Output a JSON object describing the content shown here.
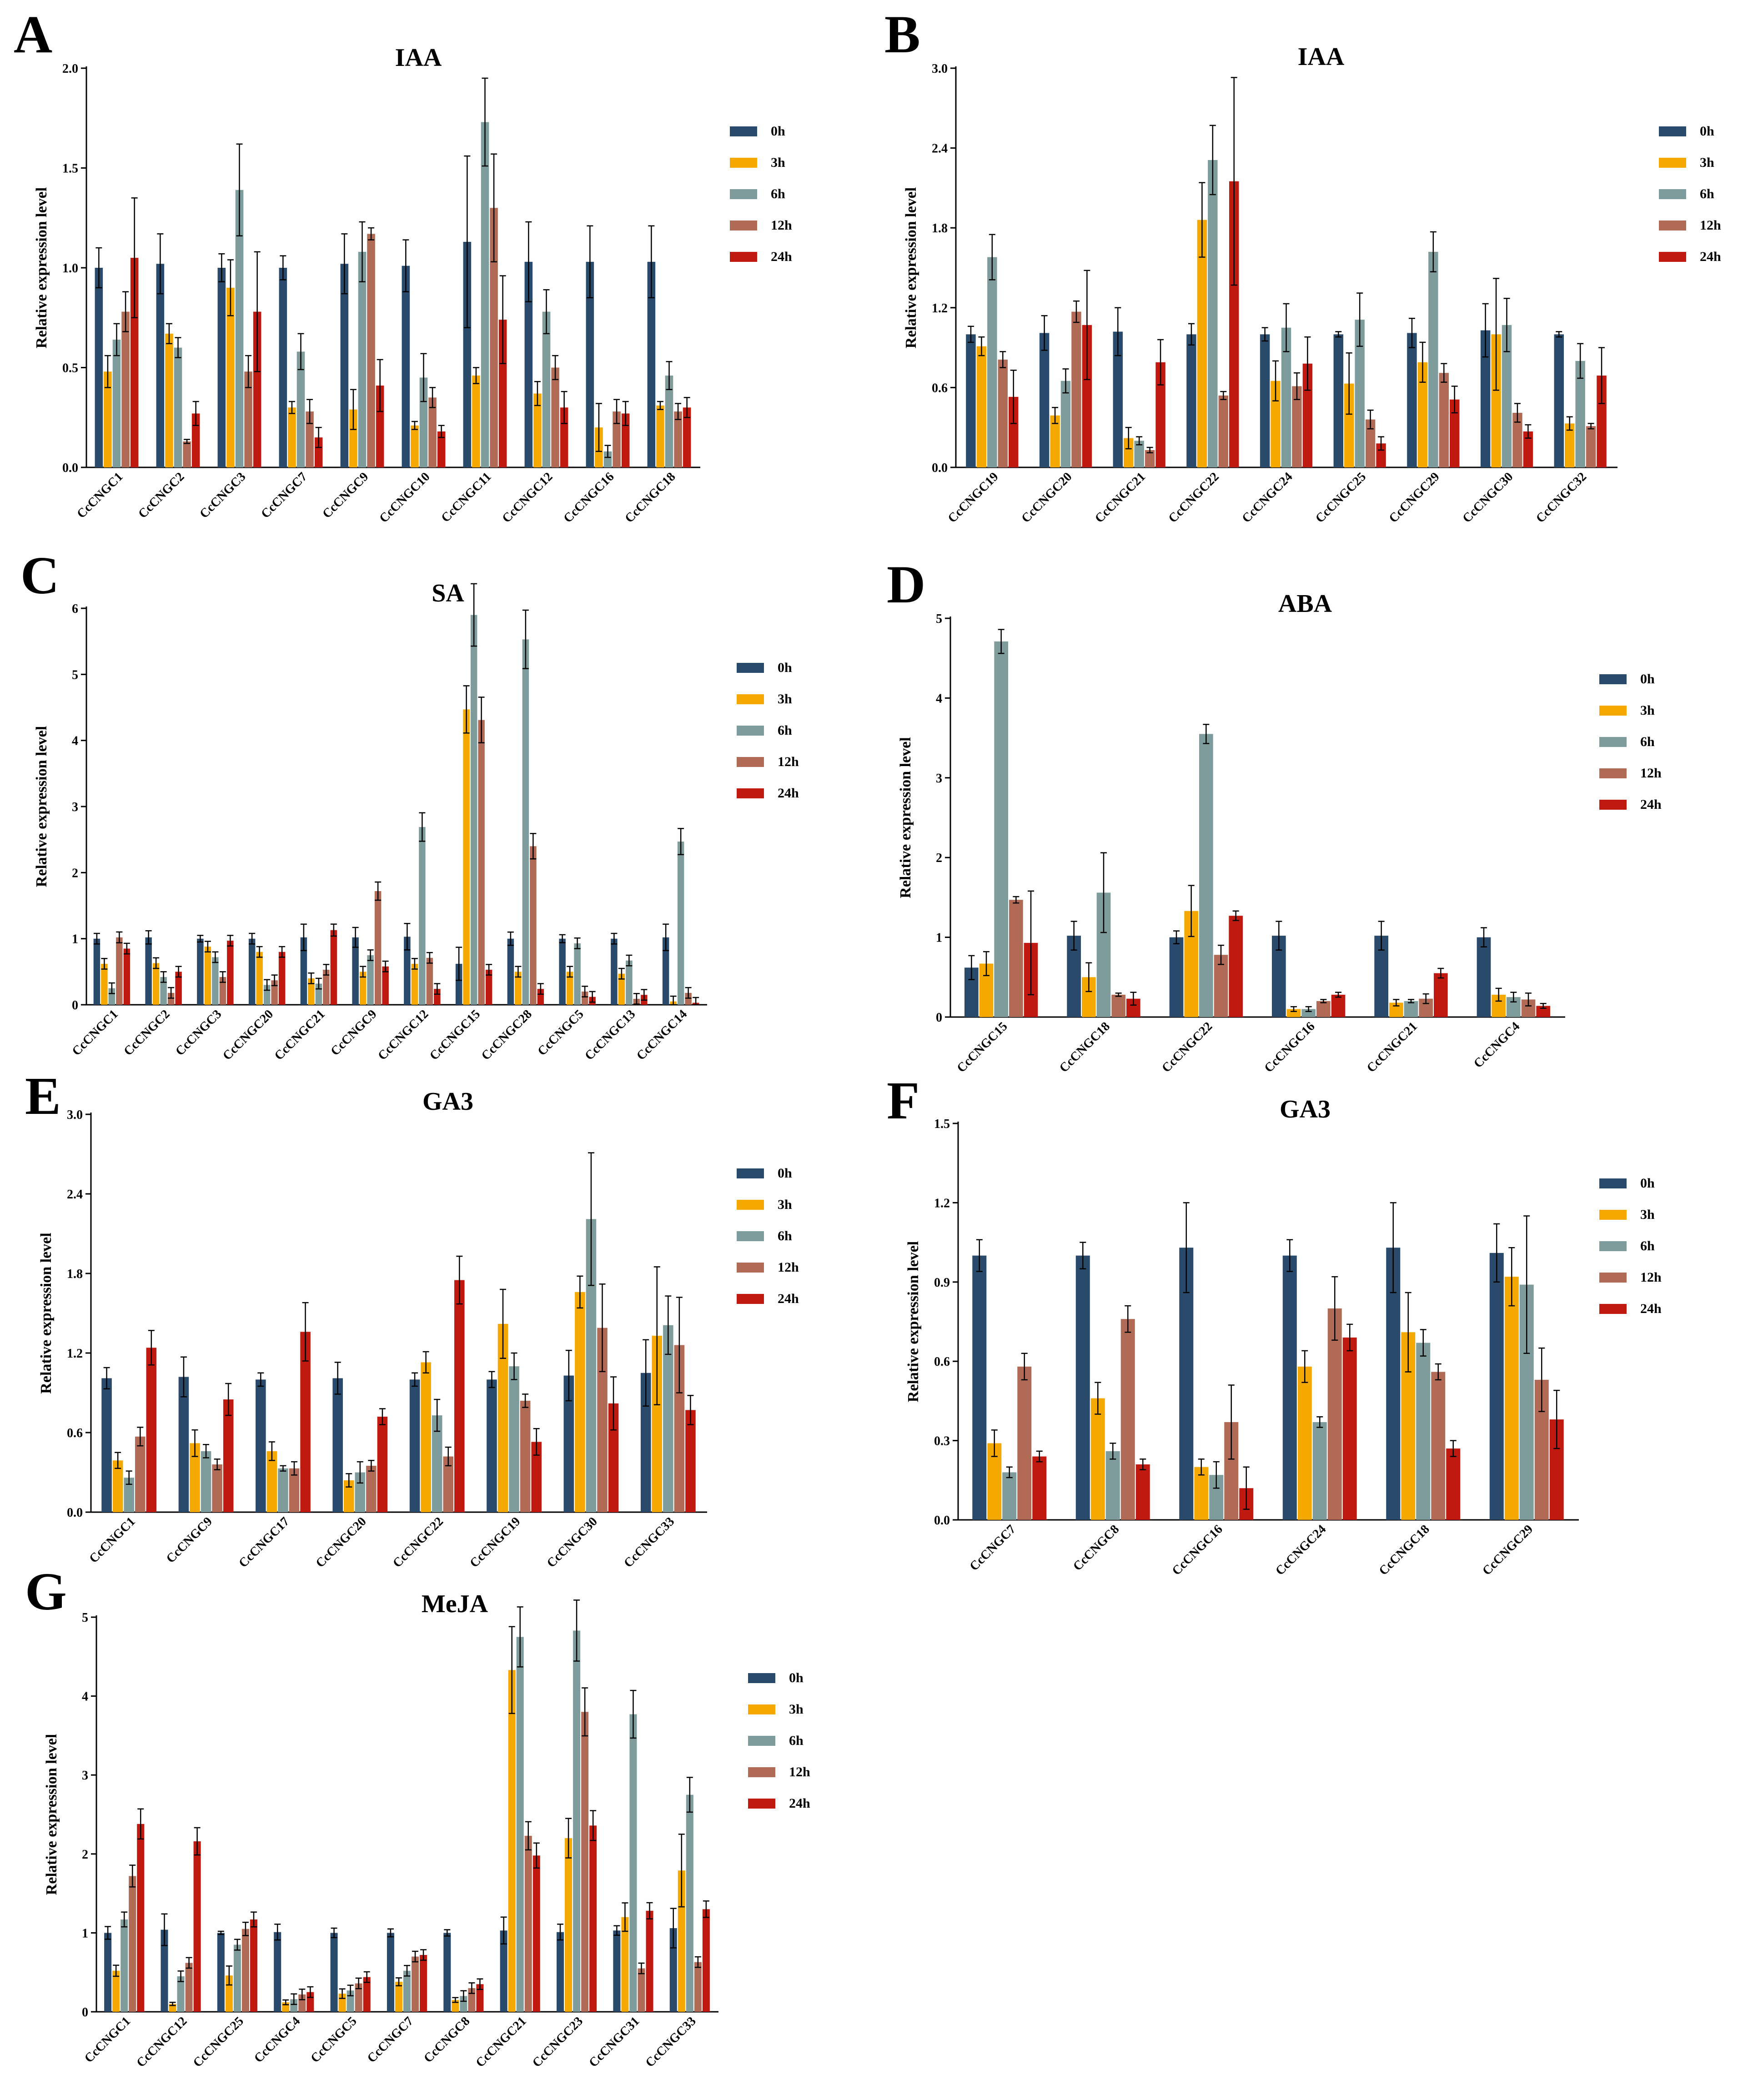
{
  "colors": {
    "h0": "#2a4a6b",
    "h3": "#f5a800",
    "h6": "#7f9c9c",
    "h12": "#b06a55",
    "h24": "#c01a10"
  },
  "legend_labels": [
    "0h",
    "3h",
    "6h",
    "12h",
    "24h"
  ],
  "chart_data": [
    {
      "panel": "A",
      "type": "bar",
      "title": "IAA",
      "ylabel": "Relative expression level",
      "ylim": [
        0,
        2.0
      ],
      "yticks": [
        "0.0",
        "0.5",
        "1.0",
        "1.5",
        "2.0"
      ],
      "categories": [
        "CcCNGC1",
        "CcCNGC2",
        "CcCNGC3",
        "CcCNGC7",
        "CcCNGC9",
        "CcCNGC10",
        "CcCNGC11",
        "CcCNGC12",
        "CcCNGC16",
        "CcCNGC18"
      ],
      "series": [
        {
          "name": "0h",
          "values": [
            1.0,
            1.02,
            1.0,
            1.0,
            1.02,
            1.01,
            1.13,
            1.03,
            1.03,
            1.03
          ],
          "errors": [
            0.1,
            0.15,
            0.07,
            0.06,
            0.15,
            0.13,
            0.43,
            0.2,
            0.18,
            0.18
          ]
        },
        {
          "name": "3h",
          "values": [
            0.48,
            0.67,
            0.9,
            0.3,
            0.29,
            0.21,
            0.46,
            0.37,
            0.2,
            0.31
          ],
          "errors": [
            0.08,
            0.05,
            0.14,
            0.03,
            0.1,
            0.02,
            0.04,
            0.06,
            0.12,
            0.02
          ]
        },
        {
          "name": "6h",
          "values": [
            0.64,
            0.6,
            1.39,
            0.58,
            1.08,
            0.45,
            1.73,
            0.78,
            0.08,
            0.46
          ],
          "errors": [
            0.08,
            0.05,
            0.23,
            0.09,
            0.15,
            0.12,
            0.22,
            0.11,
            0.03,
            0.07
          ]
        },
        {
          "name": "12h",
          "values": [
            0.78,
            0.13,
            0.48,
            0.28,
            1.17,
            0.35,
            1.3,
            0.5,
            0.28,
            0.28
          ],
          "errors": [
            0.1,
            0.01,
            0.08,
            0.06,
            0.03,
            0.05,
            0.27,
            0.06,
            0.06,
            0.04
          ]
        },
        {
          "name": "24h",
          "values": [
            1.05,
            0.27,
            0.78,
            0.15,
            0.41,
            0.18,
            0.74,
            0.3,
            0.27,
            0.3
          ],
          "errors": [
            0.3,
            0.06,
            0.3,
            0.05,
            0.13,
            0.03,
            0.22,
            0.08,
            0.06,
            0.05
          ]
        }
      ]
    },
    {
      "panel": "B",
      "type": "bar",
      "title": "IAA",
      "ylabel": "Relative expression level",
      "ylim": [
        0,
        3.0
      ],
      "yticks": [
        "0.0",
        "0.6",
        "1.2",
        "1.8",
        "2.4",
        "3.0"
      ],
      "categories": [
        "CcCNGC19",
        "CcCNGC20",
        "CcCNGC21",
        "CcCNGC22",
        "CcCNGC24",
        "CcCNGC25",
        "CcCNGC29",
        "CcCNGC30",
        "CcCNGC32"
      ],
      "series": [
        {
          "name": "0h",
          "values": [
            1.0,
            1.01,
            1.02,
            1.0,
            1.0,
            1.0,
            1.01,
            1.03,
            1.0
          ],
          "errors": [
            0.06,
            0.13,
            0.18,
            0.08,
            0.05,
            0.02,
            0.11,
            0.2,
            0.02
          ]
        },
        {
          "name": "3h",
          "values": [
            0.91,
            0.39,
            0.22,
            1.86,
            0.65,
            0.63,
            0.79,
            1.0,
            0.33
          ],
          "errors": [
            0.07,
            0.06,
            0.08,
            0.28,
            0.15,
            0.23,
            0.15,
            0.42,
            0.05
          ]
        },
        {
          "name": "6h",
          "values": [
            1.58,
            0.65,
            0.2,
            2.31,
            1.05,
            1.11,
            1.62,
            1.07,
            0.8
          ],
          "errors": [
            0.17,
            0.09,
            0.03,
            0.26,
            0.18,
            0.2,
            0.15,
            0.2,
            0.13
          ]
        },
        {
          "name": "12h",
          "values": [
            0.81,
            1.17,
            0.13,
            0.54,
            0.61,
            0.36,
            0.71,
            0.41,
            0.31
          ],
          "errors": [
            0.06,
            0.08,
            0.02,
            0.03,
            0.1,
            0.07,
            0.07,
            0.07,
            0.02
          ]
        },
        {
          "name": "24h",
          "values": [
            0.53,
            1.07,
            0.79,
            2.15,
            0.78,
            0.18,
            0.51,
            0.27,
            0.69
          ],
          "errors": [
            0.2,
            0.41,
            0.17,
            0.78,
            0.2,
            0.05,
            0.1,
            0.05,
            0.21
          ]
        }
      ]
    },
    {
      "panel": "C",
      "type": "bar",
      "title": "SA",
      "ylabel": "Relative expression level",
      "ylim": [
        0,
        6
      ],
      "yticks": [
        "0",
        "1",
        "2",
        "3",
        "4",
        "5",
        "6"
      ],
      "categories": [
        "CcCNGC1",
        "CcCNGC2",
        "CcCNGC3",
        "CcCNGC20",
        "CcCNGC21",
        "CcCNGC9",
        "CcCNGC12",
        "CcCNGC15",
        "CcCNGC28",
        "CcCNGC5",
        "CcCNGC13",
        "CcCNGC14"
      ],
      "series": [
        {
          "name": "0h",
          "values": [
            1.0,
            1.02,
            1.0,
            1.0,
            1.02,
            1.02,
            1.03,
            0.62,
            1.0,
            1.0,
            1.0,
            1.02
          ],
          "errors": [
            0.08,
            0.1,
            0.05,
            0.08,
            0.2,
            0.15,
            0.2,
            0.25,
            0.1,
            0.06,
            0.08,
            0.2
          ]
        },
        {
          "name": "3h",
          "values": [
            0.62,
            0.63,
            0.88,
            0.8,
            0.4,
            0.5,
            0.62,
            4.47,
            0.5,
            0.5,
            0.47,
            0.05
          ]
        },
        {
          "name": "6h",
          "values": [
            0.25,
            0.42,
            0.72,
            0.3,
            0.32,
            0.75,
            2.69,
            5.9,
            5.53,
            0.93,
            0.67,
            2.47
          ]
        },
        {
          "name": "12h",
          "values": [
            1.02,
            0.18,
            0.42,
            0.37,
            0.53,
            1.72,
            0.71,
            4.31,
            2.4,
            0.2,
            0.09,
            0.18
          ]
        },
        {
          "name": "24h",
          "values": [
            0.85,
            0.5,
            0.97,
            0.8,
            1.13,
            0.58,
            0.24,
            0.53,
            0.24,
            0.12,
            0.15,
            0.03
          ]
        }
      ]
    },
    {
      "panel": "D",
      "type": "bar",
      "title": "ABA",
      "ylabel": "Relative expression level",
      "ylim": [
        0,
        5
      ],
      "yticks": [
        "0",
        "1",
        "2",
        "3",
        "4",
        "5"
      ],
      "categories": [
        "CcCNGC15",
        "CcCNGC18",
        "CcCNGC22",
        "CcCNGC16",
        "CcCNGC21",
        "CcCNGC4"
      ],
      "series": [
        {
          "name": "0h",
          "values": [
            0.62,
            1.02,
            1.0,
            1.02,
            1.02,
            1.0
          ],
          "errors": [
            0.15,
            0.18,
            0.08,
            0.18,
            0.18,
            0.12
          ]
        },
        {
          "name": "3h",
          "values": [
            0.67,
            0.5,
            1.33,
            0.1,
            0.18,
            0.28
          ],
          "errors": [
            0.15,
            0.18,
            0.32,
            0.03,
            0.04,
            0.08
          ]
        },
        {
          "name": "6h",
          "values": [
            4.71,
            1.56,
            3.55,
            0.1,
            0.2,
            0.25
          ],
          "errors": [
            0.15,
            0.5,
            0.12,
            0.03,
            0.02,
            0.06
          ]
        },
        {
          "name": "12h",
          "values": [
            1.47,
            0.28,
            0.78,
            0.2,
            0.23,
            0.22
          ],
          "errors": [
            0.04,
            0.02,
            0.12,
            0.02,
            0.06,
            0.08
          ]
        },
        {
          "name": "24h",
          "values": [
            0.93,
            0.23,
            1.27,
            0.28,
            0.55,
            0.14
          ],
          "errors": [
            0.65,
            0.08,
            0.06,
            0.03,
            0.06,
            0.03
          ]
        }
      ]
    },
    {
      "panel": "E",
      "type": "bar",
      "title": "GA3",
      "ylabel": "Relative expression level",
      "ylim": [
        0,
        3.0
      ],
      "yticks": [
        "0.0",
        "0.6",
        "1.2",
        "1.8",
        "2.4",
        "3.0"
      ],
      "categories": [
        "CcCNGC1",
        "CcCNGC9",
        "CcCNGC17",
        "CcCNGC20",
        "CcCNGC22",
        "CcCNGC19",
        "CcCNGC30",
        "CcCNGC33"
      ],
      "series": [
        {
          "name": "0h",
          "values": [
            1.01,
            1.02,
            1.0,
            1.01,
            1.0,
            1.0,
            1.03,
            1.05
          ],
          "errors": [
            0.08,
            0.15,
            0.05,
            0.12,
            0.05,
            0.06,
            0.19,
            0.25
          ]
        },
        {
          "name": "3h",
          "values": [
            0.39,
            0.52,
            0.46,
            0.24,
            1.13,
            1.42,
            1.66,
            1.33
          ],
          "errors": [
            0.06,
            0.1,
            0.07,
            0.05,
            0.08,
            0.26,
            0.12,
            0.52
          ]
        },
        {
          "name": "6h",
          "values": [
            0.26,
            0.46,
            0.33,
            0.3,
            0.73,
            1.1,
            2.21,
            1.41
          ],
          "errors": [
            0.05,
            0.05,
            0.02,
            0.08,
            0.12,
            0.1,
            0.5,
            0.22
          ]
        },
        {
          "name": "12h",
          "values": [
            0.57,
            0.36,
            0.33,
            0.35,
            0.42,
            0.84,
            1.39,
            1.26
          ],
          "errors": [
            0.07,
            0.04,
            0.05,
            0.04,
            0.07,
            0.05,
            0.33,
            0.36
          ]
        },
        {
          "name": "24h",
          "values": [
            1.24,
            0.85,
            1.36,
            0.72,
            1.75,
            0.53,
            0.82,
            0.77
          ],
          "errors": [
            0.13,
            0.12,
            0.22,
            0.06,
            0.18,
            0.1,
            0.2,
            0.11
          ]
        }
      ]
    },
    {
      "panel": "F",
      "type": "bar",
      "title": "GA3",
      "ylabel": "Relative expression level",
      "ylim": [
        0,
        1.5
      ],
      "yticks": [
        "0.0",
        "0.3",
        "0.6",
        "0.9",
        "1.2",
        "1.5"
      ],
      "categories": [
        "CcCNGC7",
        "CcCNGC8",
        "CcCNGC16",
        "CcCNGC24",
        "CcCNGC18",
        "CcCNGC29"
      ],
      "series": [
        {
          "name": "0h",
          "values": [
            1.0,
            1.0,
            1.03,
            1.0,
            1.03,
            1.01
          ],
          "errors": [
            0.06,
            0.05,
            0.17,
            0.06,
            0.17,
            0.11
          ]
        },
        {
          "name": "3h",
          "values": [
            0.29,
            0.46,
            0.2,
            0.58,
            0.71,
            0.92
          ],
          "errors": [
            0.05,
            0.06,
            0.03,
            0.06,
            0.15,
            0.11
          ]
        },
        {
          "name": "6h",
          "values": [
            0.18,
            0.26,
            0.17,
            0.37,
            0.67,
            0.89
          ],
          "errors": [
            0.02,
            0.03,
            0.05,
            0.02,
            0.05,
            0.26
          ]
        },
        {
          "name": "12h",
          "values": [
            0.58,
            0.76,
            0.37,
            0.8,
            0.56,
            0.53
          ],
          "errors": [
            0.05,
            0.05,
            0.14,
            0.12,
            0.03,
            0.12
          ]
        },
        {
          "name": "24h",
          "values": [
            0.24,
            0.21,
            0.12,
            0.69,
            0.27,
            0.38
          ],
          "errors": [
            0.02,
            0.02,
            0.08,
            0.05,
            0.03,
            0.11
          ]
        }
      ]
    },
    {
      "panel": "G",
      "type": "bar",
      "title": "MeJA",
      "ylabel": "Relative expression level",
      "ylim": [
        0,
        5
      ],
      "yticks": [
        "0",
        "1",
        "2",
        "3",
        "4",
        "5"
      ],
      "categories": [
        "CcCNGC1",
        "CcCNGC12",
        "CcCNGC25",
        "CcCNGC4",
        "CcCNGC5",
        "CcCNGC7",
        "CcCNGC8",
        "CcCNGC21",
        "CcCNGC23",
        "CcCNGC31",
        "CcCNGC33"
      ],
      "series": [
        {
          "name": "0h",
          "values": [
            1.0,
            1.04,
            1.0,
            1.01,
            1.0,
            1.0,
            1.0,
            1.03,
            1.01,
            1.03,
            1.06
          ],
          "errors": [
            0.08,
            0.2,
            0.02,
            0.1,
            0.06,
            0.05,
            0.04,
            0.17,
            0.1,
            0.06,
            0.25
          ]
        },
        {
          "name": "3h",
          "values": [
            0.52,
            0.1,
            0.46,
            0.12,
            0.23,
            0.38,
            0.15,
            4.33,
            2.2,
            1.2,
            1.79
          ],
          "errors": [
            0.07,
            0.02,
            0.12,
            0.03,
            0.06,
            0.05,
            0.03,
            0.55,
            0.25,
            0.18,
            0.46
          ]
        },
        {
          "name": "6h",
          "values": [
            1.17,
            0.45,
            0.85,
            0.16,
            0.27,
            0.52,
            0.2,
            4.75,
            4.83,
            3.77,
            2.75
          ]
        },
        {
          "name": "12h",
          "values": [
            1.72,
            0.62,
            1.05,
            0.22,
            0.36,
            0.7,
            0.3,
            2.23,
            3.8,
            0.55,
            0.63
          ]
        },
        {
          "name": "24h",
          "values": [
            2.38,
            2.16,
            1.17,
            0.25,
            0.44,
            0.72,
            0.35,
            1.98,
            2.36,
            1.28,
            1.3
          ]
        }
      ]
    }
  ]
}
